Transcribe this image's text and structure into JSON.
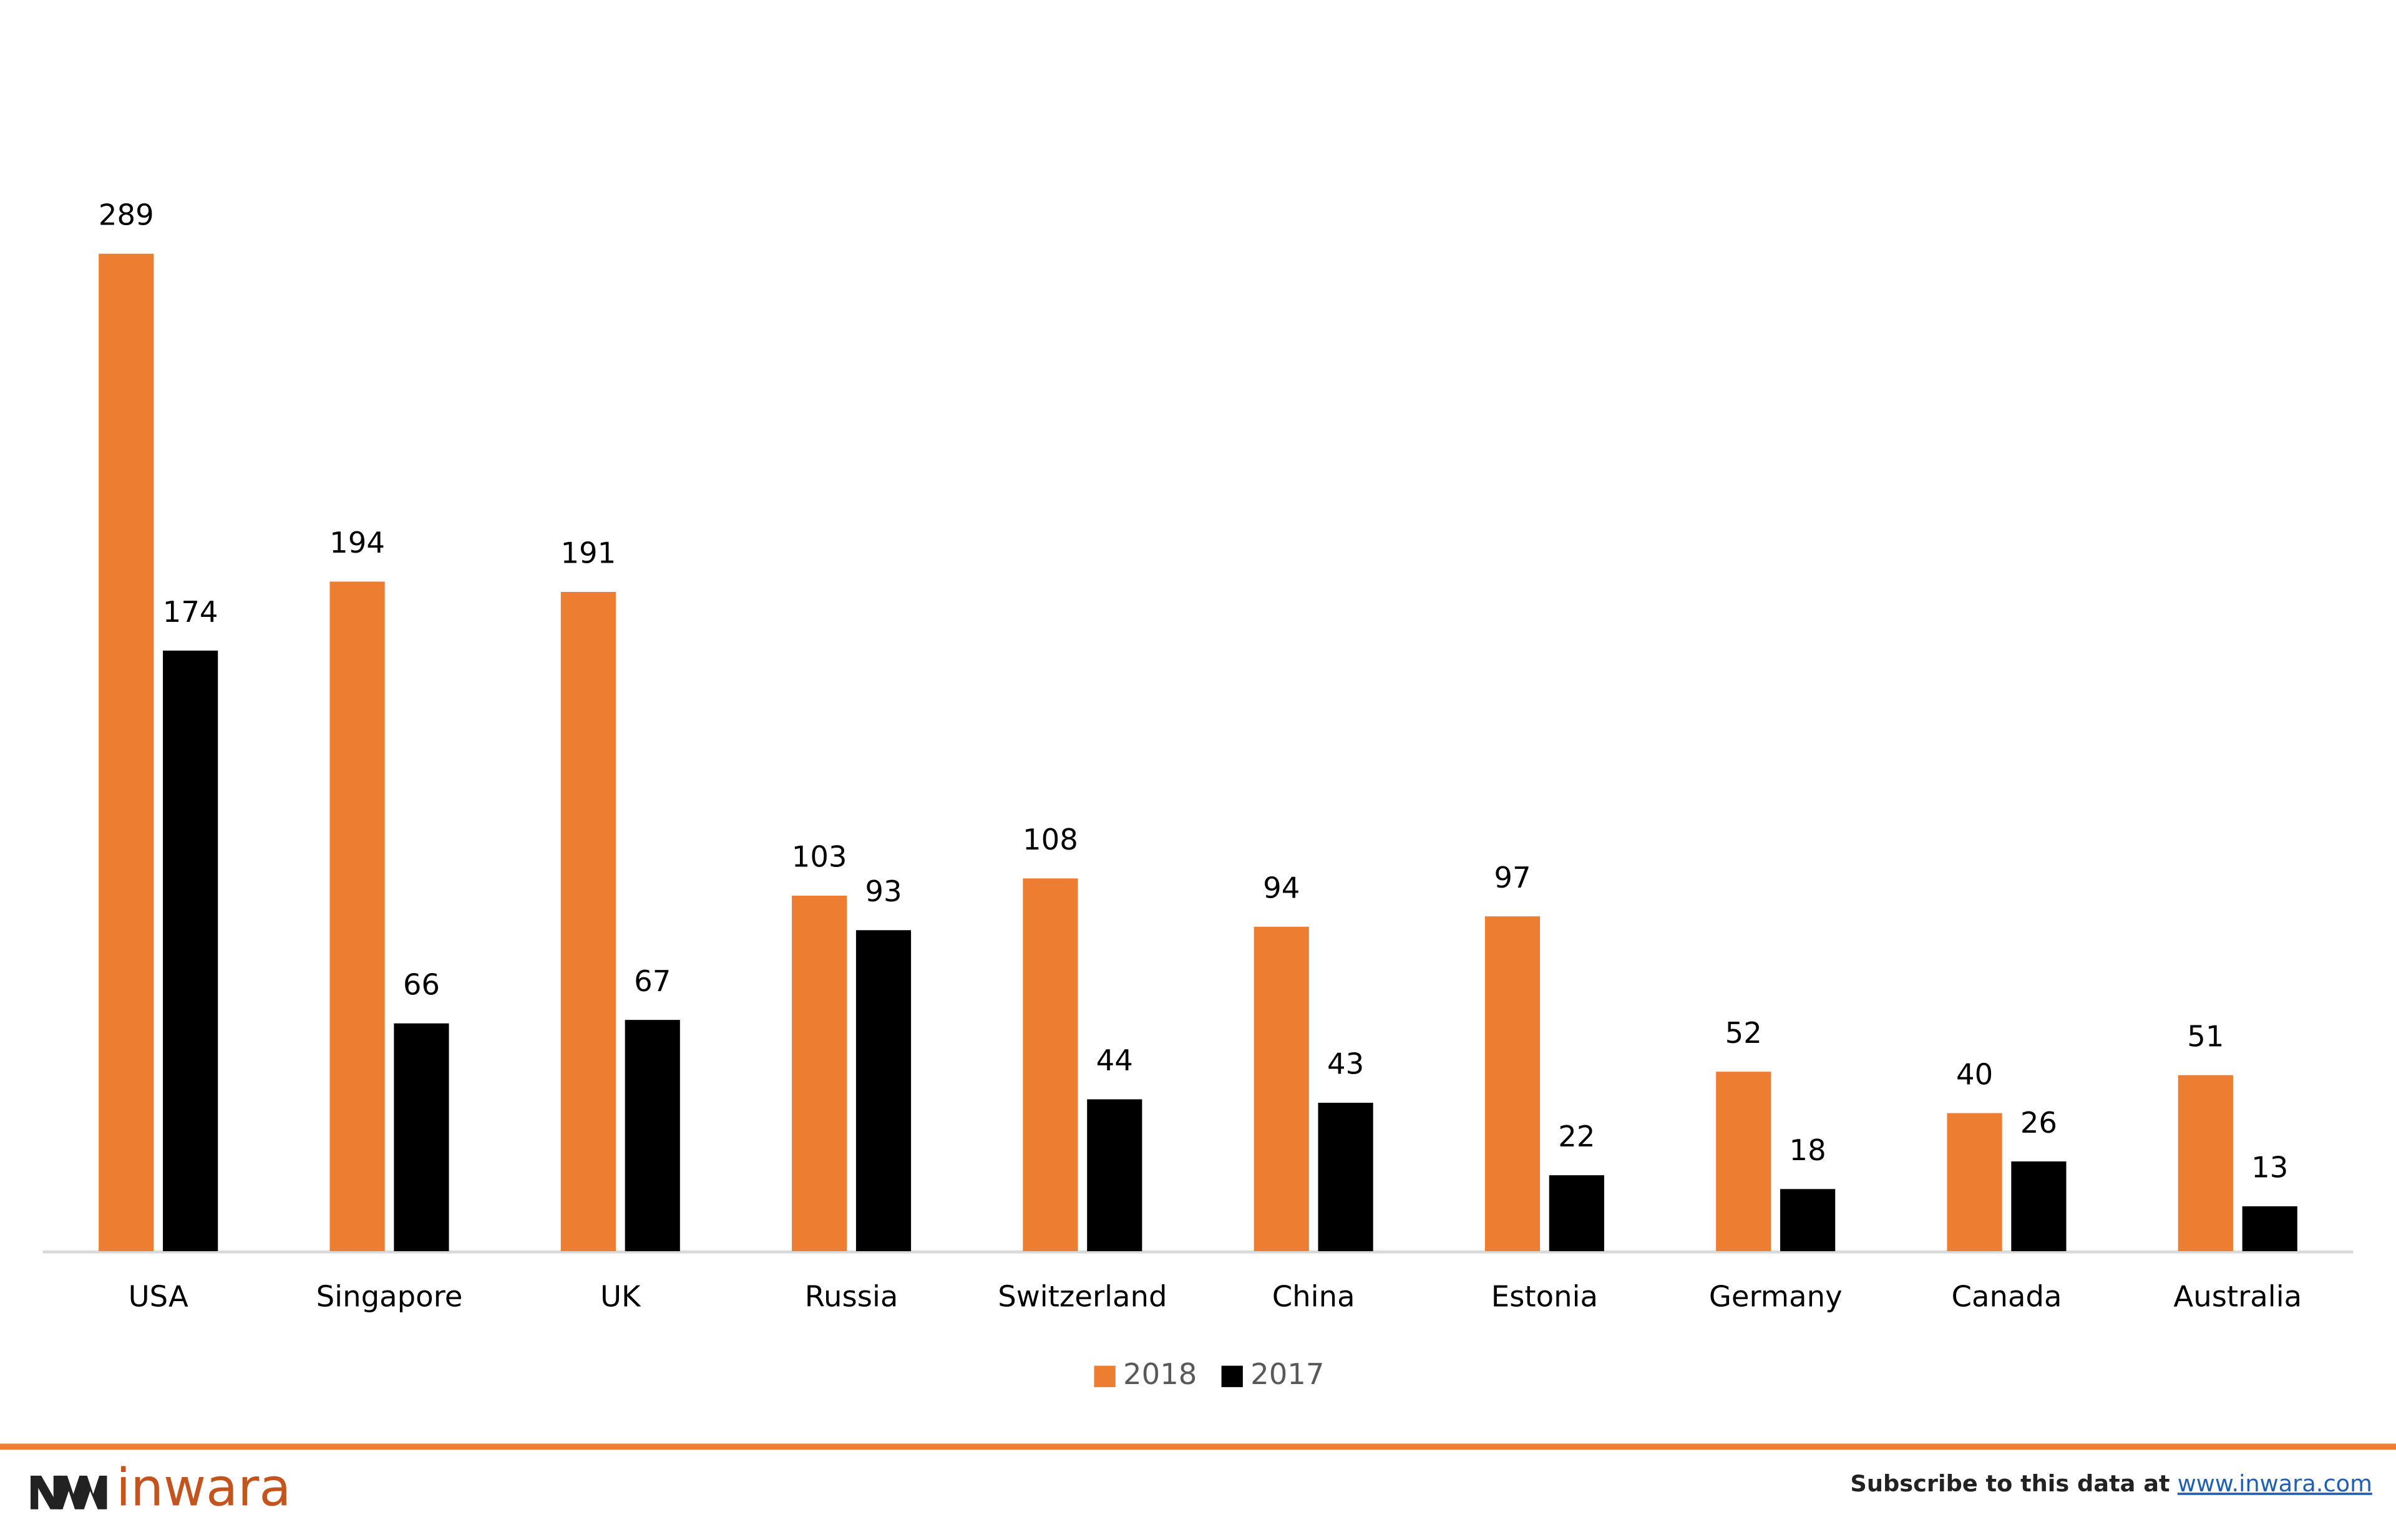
{
  "chart_data": {
    "type": "bar",
    "categories": [
      "USA",
      "Singapore",
      "UK",
      "Russia",
      "Switzerland",
      "China",
      "Estonia",
      "Germany",
      "Canada",
      "Australia"
    ],
    "series": [
      {
        "name": "2018",
        "color": "#ed7d31",
        "values": [
          289,
          194,
          191,
          103,
          108,
          94,
          97,
          52,
          40,
          51
        ]
      },
      {
        "name": "2017",
        "color": "#000000",
        "values": [
          174,
          66,
          67,
          93,
          44,
          43,
          22,
          18,
          26,
          13
        ]
      }
    ],
    "legend": "bottom"
  },
  "footer": {
    "brand": "inwara",
    "subscribe_text": "Subscribe to this data at",
    "link": "www.inwara.com"
  }
}
